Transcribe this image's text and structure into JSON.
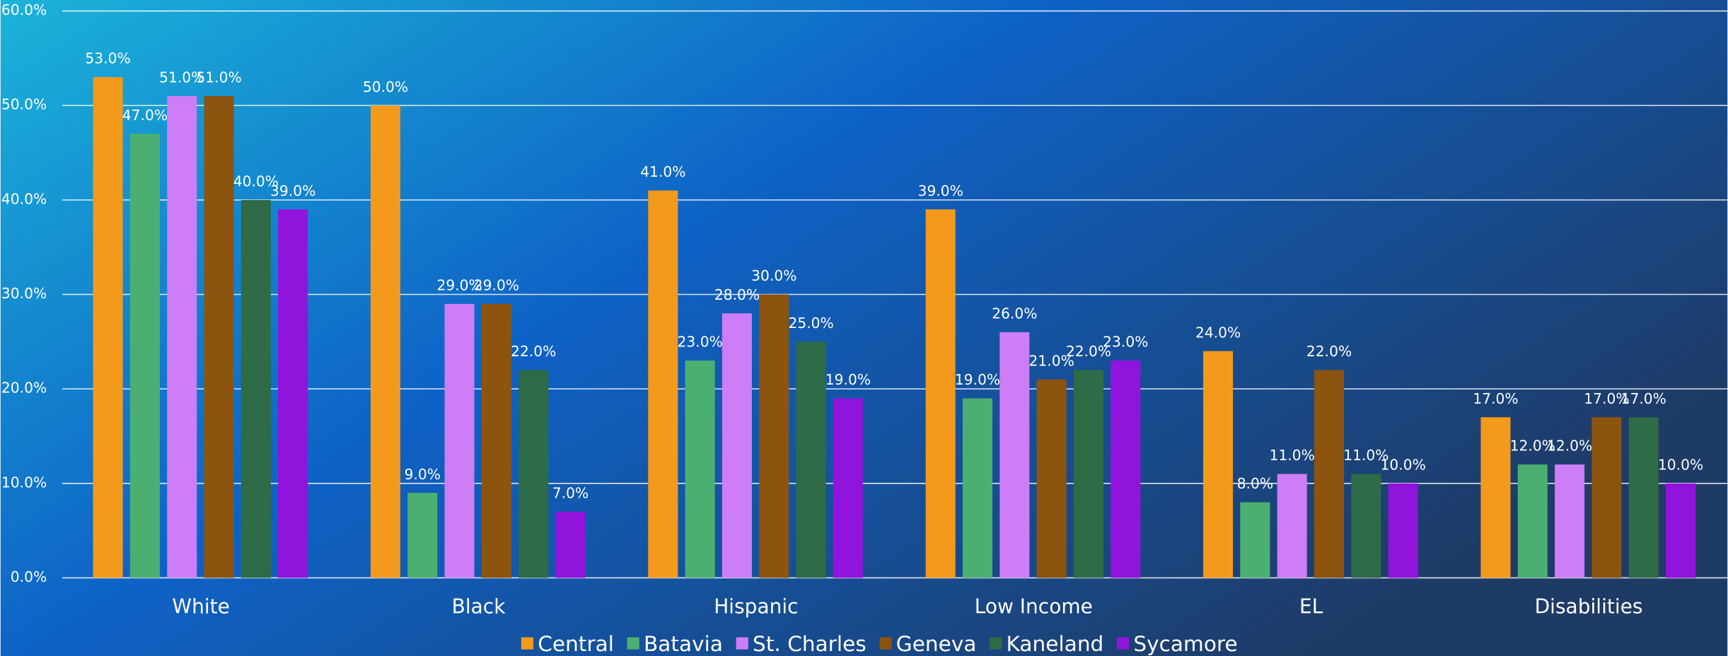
{
  "chart_data": {
    "type": "bar",
    "categories": [
      "White",
      "Black",
      "Hispanic",
      "Low Income",
      "EL",
      "Disabilities"
    ],
    "series": [
      {
        "name": "Central",
        "color": "#f39a1c",
        "values": [
          53,
          50,
          41,
          39,
          24,
          17
        ],
        "value_labels": [
          "53.0%",
          "50.0%",
          "41.0%",
          "39.0%",
          "24.0%",
          "17.0%"
        ]
      },
      {
        "name": "Batavia",
        "color": "#4caf72",
        "values": [
          47,
          9,
          23,
          19,
          8,
          12
        ],
        "value_labels": [
          "47.0%",
          "9.0%",
          "23.0%",
          "19.0%",
          "8.0%",
          "12.0%"
        ]
      },
      {
        "name": "St. Charles",
        "color": "#cd7df5",
        "values": [
          51,
          29,
          28,
          26,
          11,
          12
        ],
        "value_labels": [
          "51.0%",
          "29.0%",
          "28.0%",
          "26.0%",
          "11.0%",
          "12.0%"
        ]
      },
      {
        "name": "Geneva",
        "color": "#8c540f",
        "values": [
          51,
          29,
          30,
          21,
          22,
          17
        ],
        "value_labels": [
          "51.0%",
          "29.0%",
          "30.0%",
          "21.0%",
          "22.0%",
          "17.0%"
        ]
      },
      {
        "name": "Kaneland",
        "color": "#2e6b47",
        "values": [
          40,
          22,
          25,
          22,
          11,
          17
        ],
        "value_labels": [
          "40.0%",
          "22.0%",
          "25.0%",
          "22.0%",
          "11.0%",
          "17.0%"
        ]
      },
      {
        "name": "Sycamore",
        "color": "#9114dd",
        "values": [
          39,
          7,
          19,
          23,
          10,
          10
        ],
        "value_labels": [
          "39.0%",
          "7.0%",
          "19.0%",
          "23.0%",
          "10.0%",
          "10.0%"
        ]
      }
    ],
    "ylim": [
      0,
      60
    ],
    "yticks": [
      {
        "value": 0,
        "label": "0.0%"
      },
      {
        "value": 10,
        "label": "10.0%"
      },
      {
        "value": 20,
        "label": "20.0%"
      },
      {
        "value": 30,
        "label": "30.0%"
      },
      {
        "value": 40,
        "label": "40.0%"
      },
      {
        "value": 50,
        "label": "50.0%"
      },
      {
        "value": 60,
        "label": "60.0%"
      }
    ],
    "grid": true,
    "legend": "bottom"
  }
}
